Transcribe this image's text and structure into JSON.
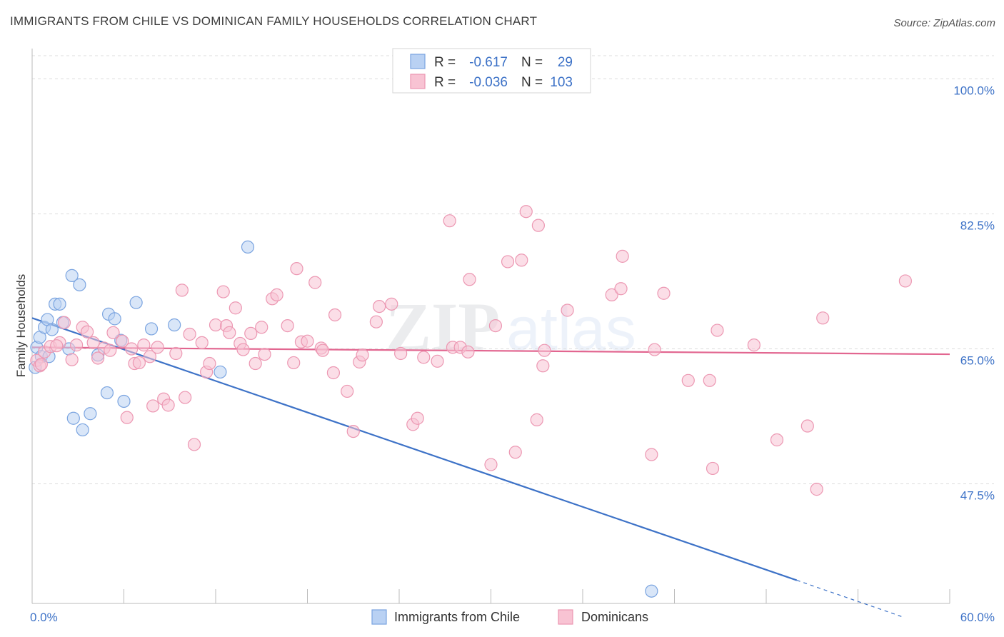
{
  "header": {
    "title": "IMMIGRANTS FROM CHILE VS DOMINICAN FAMILY HOUSEHOLDS CORRELATION CHART",
    "source": "Source: ZipAtlas.com"
  },
  "colors": {
    "blue": "#3d72c7",
    "blue_fill": "#b9d1f3",
    "blue_stroke": "#7aa4e0",
    "pink": "#e26690",
    "pink_fill": "#f8c3d3",
    "pink_stroke": "#ec97b2",
    "grid": "#dcdcdc",
    "tick_label": "#3d72c7"
  },
  "chart_data": {
    "type": "scatter",
    "title": "IMMIGRANTS FROM CHILE VS DOMINICAN FAMILY HOUSEHOLDS CORRELATION CHART",
    "xlabel": "",
    "ylabel": "Family Households",
    "xlim": [
      0,
      60
    ],
    "ylim": [
      32.0,
      103.0
    ],
    "x_tick_labels": [
      {
        "value": 0,
        "label": "0.0%"
      },
      {
        "value": 60,
        "label": "60.0%"
      }
    ],
    "y_ticks": [
      {
        "value": 100.0,
        "label": "100.0%"
      },
      {
        "value": 82.5,
        "label": "82.5%"
      },
      {
        "value": 65.0,
        "label": "65.0%"
      },
      {
        "value": 47.5,
        "label": "47.5%"
      }
    ],
    "grid": true,
    "legend_position": "top-center",
    "legend": [
      {
        "series": "Immigrants from Chile",
        "r_label": "R =",
        "r": "-0.617",
        "n_label": "N =",
        "n": "29"
      },
      {
        "series": "Dominicans",
        "r_label": "R =",
        "r": "-0.036",
        "n_label": "N =",
        "n": "103"
      }
    ],
    "series": [
      {
        "name": "Immigrants from Chile",
        "color": "blue",
        "trend": {
          "x0": 0,
          "y0": 69.0,
          "x1": 50.0,
          "y1": 35.0,
          "dashed_to_x": 57.0,
          "dashed_to_y": 30.2
        },
        "points": [
          [
            0.3,
            65.2
          ],
          [
            0.5,
            66.5
          ],
          [
            0.6,
            64.0
          ],
          [
            0.8,
            67.8
          ],
          [
            1.0,
            68.8
          ],
          [
            1.1,
            64.0
          ],
          [
            1.3,
            67.5
          ],
          [
            1.5,
            70.8
          ],
          [
            1.8,
            70.8
          ],
          [
            2.0,
            68.4
          ],
          [
            2.4,
            65.0
          ],
          [
            2.6,
            74.5
          ],
          [
            2.7,
            56.0
          ],
          [
            3.1,
            73.3
          ],
          [
            3.3,
            54.5
          ],
          [
            3.8,
            56.6
          ],
          [
            4.3,
            64.2
          ],
          [
            4.9,
            59.3
          ],
          [
            5.0,
            69.5
          ],
          [
            5.4,
            68.9
          ],
          [
            5.8,
            66.1
          ],
          [
            6.0,
            58.2
          ],
          [
            6.8,
            71.0
          ],
          [
            7.8,
            67.6
          ],
          [
            9.3,
            68.1
          ],
          [
            12.3,
            62.0
          ],
          [
            14.1,
            78.2
          ],
          [
            40.5,
            33.6
          ],
          [
            0.2,
            62.6
          ]
        ]
      },
      {
        "name": "Dominicans",
        "color": "pink",
        "trend": {
          "x0": 0,
          "y0": 65.2,
          "x1": 60.0,
          "y1": 64.3
        },
        "points": [
          [
            0.3,
            63.5
          ],
          [
            0.5,
            62.8
          ],
          [
            0.8,
            64.6
          ],
          [
            1.2,
            65.3
          ],
          [
            1.8,
            65.8
          ],
          [
            2.1,
            68.4
          ],
          [
            2.6,
            63.6
          ],
          [
            2.9,
            65.5
          ],
          [
            3.3,
            67.8
          ],
          [
            3.6,
            67.2
          ],
          [
            4.0,
            65.8
          ],
          [
            4.3,
            63.8
          ],
          [
            4.7,
            65.1
          ],
          [
            5.1,
            64.8
          ],
          [
            5.3,
            67.1
          ],
          [
            5.9,
            66.0
          ],
          [
            6.2,
            56.1
          ],
          [
            6.5,
            65.0
          ],
          [
            6.7,
            63.1
          ],
          [
            7.0,
            63.2
          ],
          [
            7.3,
            65.5
          ],
          [
            7.7,
            64.0
          ],
          [
            7.9,
            57.6
          ],
          [
            8.2,
            65.2
          ],
          [
            8.6,
            58.5
          ],
          [
            8.9,
            57.7
          ],
          [
            9.4,
            64.4
          ],
          [
            9.8,
            72.6
          ],
          [
            10.0,
            58.7
          ],
          [
            10.3,
            66.9
          ],
          [
            10.6,
            52.6
          ],
          [
            11.1,
            65.8
          ],
          [
            11.4,
            62.0
          ],
          [
            11.6,
            63.1
          ],
          [
            12.0,
            68.1
          ],
          [
            12.5,
            72.4
          ],
          [
            12.7,
            68.0
          ],
          [
            12.9,
            67.1
          ],
          [
            13.3,
            70.3
          ],
          [
            13.6,
            65.7
          ],
          [
            13.8,
            64.9
          ],
          [
            14.3,
            67.0
          ],
          [
            14.6,
            63.1
          ],
          [
            15.0,
            67.8
          ],
          [
            15.2,
            64.3
          ],
          [
            15.7,
            71.5
          ],
          [
            16.0,
            72.0
          ],
          [
            16.7,
            68.0
          ],
          [
            17.1,
            63.2
          ],
          [
            17.3,
            75.4
          ],
          [
            17.6,
            65.9
          ],
          [
            18.0,
            66.0
          ],
          [
            18.5,
            73.6
          ],
          [
            18.9,
            65.1
          ],
          [
            19.0,
            64.8
          ],
          [
            19.7,
            61.9
          ],
          [
            19.8,
            69.4
          ],
          [
            20.6,
            59.5
          ],
          [
            21.0,
            54.3
          ],
          [
            21.4,
            63.3
          ],
          [
            21.6,
            64.2
          ],
          [
            22.5,
            68.5
          ],
          [
            22.7,
            70.5
          ],
          [
            23.5,
            70.8
          ],
          [
            24.1,
            64.4
          ],
          [
            24.9,
            55.2
          ],
          [
            25.2,
            56.0
          ],
          [
            25.6,
            63.9
          ],
          [
            26.5,
            63.4
          ],
          [
            27.3,
            81.6
          ],
          [
            27.5,
            65.2
          ],
          [
            28.0,
            65.2
          ],
          [
            28.5,
            64.6
          ],
          [
            28.6,
            74.0
          ],
          [
            30.0,
            50.0
          ],
          [
            30.3,
            68.0
          ],
          [
            31.1,
            76.3
          ],
          [
            31.6,
            51.6
          ],
          [
            32.0,
            76.5
          ],
          [
            32.3,
            82.8
          ],
          [
            33.0,
            55.8
          ],
          [
            33.1,
            81.0
          ],
          [
            33.4,
            62.8
          ],
          [
            33.5,
            64.8
          ],
          [
            35.0,
            70.0
          ],
          [
            37.9,
            72.0
          ],
          [
            38.5,
            72.8
          ],
          [
            38.6,
            77.0
          ],
          [
            40.5,
            51.3
          ],
          [
            40.7,
            64.9
          ],
          [
            41.3,
            72.2
          ],
          [
            42.9,
            60.9
          ],
          [
            44.3,
            60.9
          ],
          [
            44.5,
            49.5
          ],
          [
            44.8,
            67.4
          ],
          [
            47.2,
            65.5
          ],
          [
            48.7,
            53.2
          ],
          [
            50.7,
            55.0
          ],
          [
            51.3,
            46.8
          ],
          [
            51.7,
            69.0
          ],
          [
            57.1,
            73.8
          ],
          [
            0.6,
            63.0
          ],
          [
            1.6,
            65.4
          ]
        ]
      }
    ],
    "bottom_legend": [
      {
        "label": "Immigrants from Chile",
        "color": "blue"
      },
      {
        "label": "Dominicans",
        "color": "pink"
      }
    ],
    "watermark": "ZIPatlas"
  }
}
